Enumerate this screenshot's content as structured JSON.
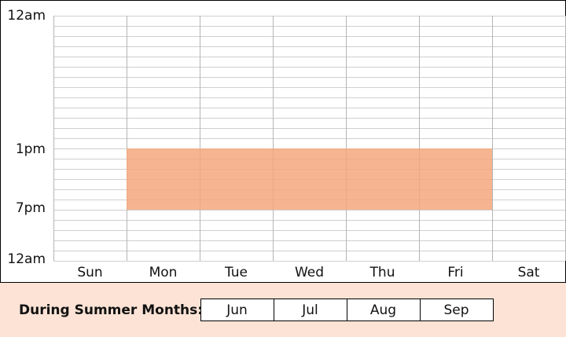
{
  "days": [
    "Sun",
    "Mon",
    "Tue",
    "Wed",
    "Thu",
    "Fri",
    "Sat"
  ],
  "time_labels": [
    "12am",
    "1pm",
    "7pm",
    "12am"
  ],
  "footer": {
    "label": "During Summer Months:",
    "months": [
      "Jun",
      "Jul",
      "Aug",
      "Sep"
    ]
  }
}
